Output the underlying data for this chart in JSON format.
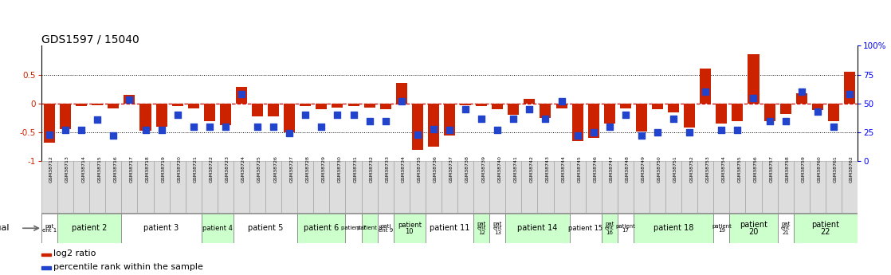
{
  "title": "GDS1597 / 15040",
  "samples": [
    "GSM38712",
    "GSM38713",
    "GSM38714",
    "GSM38715",
    "GSM38716",
    "GSM38717",
    "GSM38718",
    "GSM38719",
    "GSM38720",
    "GSM38721",
    "GSM38722",
    "GSM38723",
    "GSM38724",
    "GSM38725",
    "GSM38726",
    "GSM38727",
    "GSM38728",
    "GSM38729",
    "GSM38730",
    "GSM38731",
    "GSM38732",
    "GSM38733",
    "GSM38734",
    "GSM38735",
    "GSM38736",
    "GSM38737",
    "GSM38738",
    "GSM38739",
    "GSM38740",
    "GSM38741",
    "GSM38742",
    "GSM38743",
    "GSM38744",
    "GSM38745",
    "GSM38746",
    "GSM38747",
    "GSM38748",
    "GSM38749",
    "GSM38750",
    "GSM38751",
    "GSM38752",
    "GSM38753",
    "GSM38754",
    "GSM38755",
    "GSM38756",
    "GSM38757",
    "GSM38758",
    "GSM38759",
    "GSM38760",
    "GSM38761",
    "GSM38762"
  ],
  "log2_ratio": [
    -0.68,
    -0.45,
    -0.05,
    -0.03,
    -0.08,
    0.15,
    -0.47,
    -0.4,
    -0.05,
    -0.08,
    -0.3,
    -0.38,
    0.28,
    -0.22,
    -0.22,
    -0.5,
    -0.05,
    -0.1,
    -0.07,
    -0.05,
    -0.07,
    -0.1,
    0.35,
    -0.8,
    -0.75,
    -0.55,
    -0.03,
    -0.05,
    -0.1,
    -0.2,
    0.08,
    -0.25,
    -0.08,
    -0.65,
    -0.6,
    -0.35,
    -0.08,
    -0.48,
    -0.1,
    -0.15,
    -0.42,
    0.6,
    -0.35,
    -0.3,
    0.85,
    -0.3,
    -0.18,
    0.18,
    -0.12,
    -0.3,
    0.55
  ],
  "percentile": [
    23,
    27,
    27,
    36,
    22,
    53,
    27,
    27,
    40,
    30,
    30,
    30,
    58,
    30,
    30,
    24,
    40,
    30,
    40,
    40,
    35,
    35,
    52,
    23,
    28,
    27,
    45,
    37,
    27,
    37,
    45,
    37,
    52,
    22,
    25,
    30,
    40,
    22,
    25,
    37,
    25,
    60,
    27,
    27,
    55,
    35,
    35,
    60,
    43,
    30,
    58
  ],
  "patients": [
    {
      "label": "pat\nent 1",
      "start": 0,
      "end": 1,
      "color": "#ffffff"
    },
    {
      "label": "patient 2",
      "start": 1,
      "end": 5,
      "color": "#ccffcc"
    },
    {
      "label": "patient 3",
      "start": 5,
      "end": 10,
      "color": "#ffffff"
    },
    {
      "label": "patient 4",
      "start": 10,
      "end": 12,
      "color": "#ccffcc"
    },
    {
      "label": "patient 5",
      "start": 12,
      "end": 16,
      "color": "#ffffff"
    },
    {
      "label": "patient 6",
      "start": 16,
      "end": 19,
      "color": "#ccffcc"
    },
    {
      "label": "patient 7",
      "start": 19,
      "end": 20,
      "color": "#ffffff"
    },
    {
      "label": "patient 8",
      "start": 20,
      "end": 21,
      "color": "#ccffcc"
    },
    {
      "label": "pati\nent 9",
      "start": 21,
      "end": 22,
      "color": "#ffffff"
    },
    {
      "label": "patient\n10",
      "start": 22,
      "end": 24,
      "color": "#ccffcc"
    },
    {
      "label": "patient 11",
      "start": 24,
      "end": 27,
      "color": "#ffffff"
    },
    {
      "label": "pat\nent\n12",
      "start": 27,
      "end": 28,
      "color": "#ccffcc"
    },
    {
      "label": "pat\nent\n13",
      "start": 28,
      "end": 29,
      "color": "#ffffff"
    },
    {
      "label": "patient 14",
      "start": 29,
      "end": 33,
      "color": "#ccffcc"
    },
    {
      "label": "patient 15",
      "start": 33,
      "end": 35,
      "color": "#ffffff"
    },
    {
      "label": "pat\nent\n16",
      "start": 35,
      "end": 36,
      "color": "#ccffcc"
    },
    {
      "label": "patient\n17",
      "start": 36,
      "end": 37,
      "color": "#ffffff"
    },
    {
      "label": "patient 18",
      "start": 37,
      "end": 42,
      "color": "#ccffcc"
    },
    {
      "label": "patient\n19",
      "start": 42,
      "end": 43,
      "color": "#ffffff"
    },
    {
      "label": "patient\n20",
      "start": 43,
      "end": 46,
      "color": "#ccffcc"
    },
    {
      "label": "pat\nent\n21",
      "start": 46,
      "end": 47,
      "color": "#ffffff"
    },
    {
      "label": "patient\n22",
      "start": 47,
      "end": 51,
      "color": "#ccffcc"
    }
  ],
  "bar_color": "#cc2200",
  "dot_color": "#2244cc",
  "title_fontsize": 10,
  "legend_label_red": "log2 ratio",
  "legend_label_blue": "percentile rank within the sample"
}
